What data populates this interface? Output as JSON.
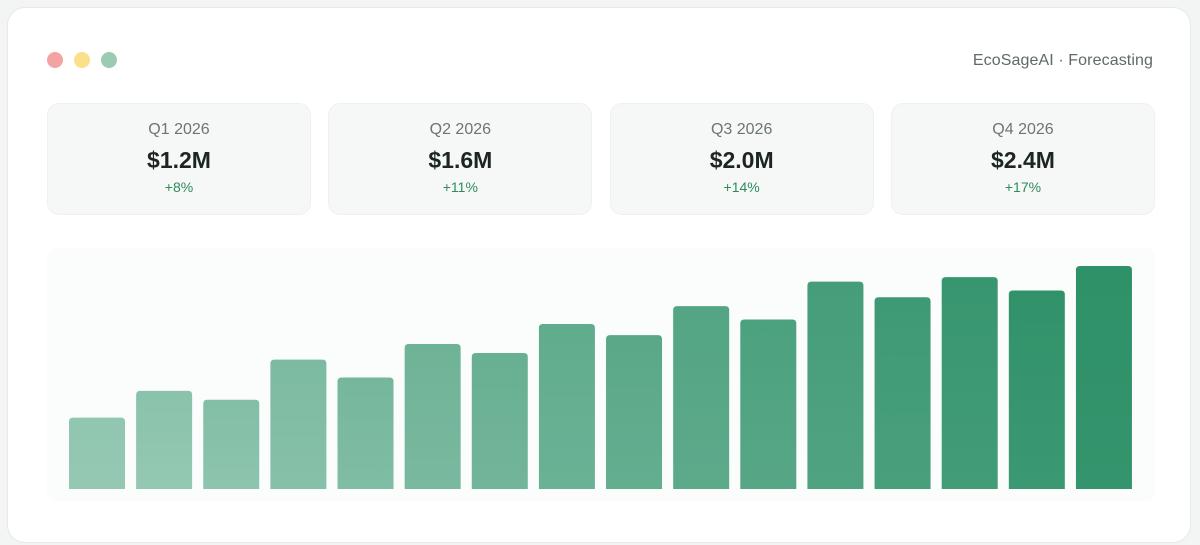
{
  "window": {
    "title": "EcoSageAI · Forecasting",
    "controls": [
      {
        "name": "close-dot",
        "color": "#f4a3a3"
      },
      {
        "name": "minimize-dot",
        "color": "#fbe08a"
      },
      {
        "name": "zoom-dot",
        "color": "#9ccbb3"
      }
    ]
  },
  "cards": [
    {
      "quarter": "Q1 2026",
      "value": "$1.2M",
      "change": "+8%"
    },
    {
      "quarter": "Q2 2026",
      "value": "$1.6M",
      "change": "+11%"
    },
    {
      "quarter": "Q3 2026",
      "value": "$2.0M",
      "change": "+14%"
    },
    {
      "quarter": "Q4 2026",
      "value": "$2.4M",
      "change": "+17%"
    }
  ],
  "colors": {
    "positive": "#2f8a5c",
    "bar_start": "#95c8b3",
    "bar_end": "#2e9168"
  },
  "chart_data": {
    "type": "bar",
    "values": [
      32,
      44,
      40,
      58,
      50,
      65,
      61,
      74,
      69,
      82,
      76,
      93,
      86,
      95,
      89,
      100
    ],
    "ylim": [
      0,
      100
    ]
  }
}
